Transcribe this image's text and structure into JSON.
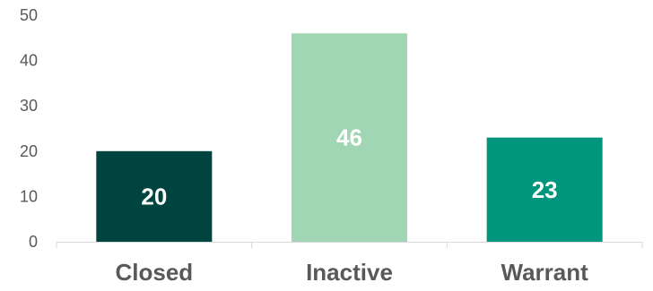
{
  "chart_data": {
    "type": "bar",
    "title": "",
    "xlabel": "",
    "ylabel": "",
    "categories": [
      "Closed",
      "Inactive",
      "Warrant"
    ],
    "values": [
      20,
      46,
      23
    ],
    "data_labels": [
      "20",
      "46",
      "23"
    ],
    "ylim": [
      0,
      50
    ],
    "yticks": [
      0,
      10,
      20,
      30,
      40,
      50
    ],
    "ytick_labels": [
      "0",
      "10",
      "20",
      "30",
      "40",
      "50"
    ],
    "grid": false,
    "legend": "none",
    "colors": [
      "#00443f",
      "#a1d6b4",
      "#00957d"
    ],
    "axis_color": "#d9d9d9"
  }
}
